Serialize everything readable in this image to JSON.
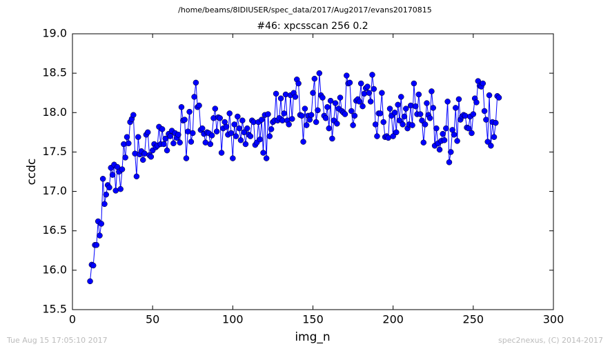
{
  "chart_data": {
    "type": "scatter",
    "header": "/home/beams/8IDIUSER/spec_data/2017/Aug2017/evans20170815",
    "title": "#46: xpcsscan 256 0.2",
    "x_label": "img_n",
    "y_label": "ccdc",
    "footer_left": "Tue Aug 15 17:05:10 2017",
    "footer_right": "spec2nexus, (C) 2014-2017",
    "xlim": [
      0,
      300
    ],
    "xticks": [
      0,
      50,
      100,
      150,
      200,
      250,
      300
    ],
    "ylim": [
      15.5,
      19.0
    ],
    "yticks": [
      {
        "value": 15.5,
        "label": "15.5"
      },
      {
        "value": 16,
        "label": "16.0"
      },
      {
        "value": 16.5,
        "label": "16.5"
      },
      {
        "value": 17,
        "label": "17.0"
      },
      {
        "value": 17.5,
        "label": "17.5"
      },
      {
        "value": 18,
        "label": "18.0"
      },
      {
        "value": 18.5,
        "label": "18.5"
      },
      {
        "value": 19,
        "label": "19.0"
      }
    ],
    "color": "#0000ff",
    "x": [
      11,
      12,
      13,
      14,
      15,
      16,
      17,
      18,
      19,
      20,
      21,
      22,
      23,
      24,
      25,
      26,
      27,
      28,
      29,
      30,
      31,
      32,
      33,
      34,
      35,
      36,
      37,
      38,
      39,
      40,
      41,
      42,
      43,
      44,
      45,
      46,
      47,
      48,
      49,
      50,
      51,
      52,
      53,
      54,
      55,
      56,
      57,
      58,
      59,
      60,
      61,
      62,
      63,
      64,
      65,
      66,
      67,
      68,
      69,
      70,
      71,
      72,
      73,
      74,
      75,
      76,
      77,
      78,
      79,
      80,
      81,
      82,
      83,
      84,
      85,
      86,
      87,
      88,
      89,
      90,
      91,
      92,
      93,
      94,
      95,
      96,
      97,
      98,
      99,
      100,
      101,
      102,
      103,
      104,
      105,
      106,
      107,
      108,
      109,
      110,
      111,
      112,
      113,
      114,
      115,
      116,
      117,
      118,
      119,
      120,
      121,
      122,
      123,
      124,
      125,
      126,
      127,
      128,
      129,
      130,
      131,
      132,
      133,
      134,
      135,
      136,
      137,
      138,
      139,
      140,
      141,
      142,
      143,
      144,
      145,
      146,
      147,
      148,
      149,
      150,
      151,
      152,
      153,
      154,
      155,
      156,
      157,
      158,
      159,
      160,
      161,
      162,
      163,
      164,
      165,
      166,
      167,
      168,
      169,
      170,
      171,
      172,
      173,
      174,
      175,
      176,
      177,
      178,
      179,
      180,
      181,
      182,
      183,
      184,
      185,
      186,
      187,
      188,
      189,
      190,
      191,
      192,
      193,
      194,
      195,
      196,
      197,
      198,
      199,
      200,
      201,
      202,
      203,
      204,
      205,
      206,
      207,
      208,
      209,
      210,
      211,
      212,
      213,
      214,
      215,
      216,
      217,
      218,
      219,
      220,
      221,
      222,
      223,
      224,
      225,
      226,
      227,
      228,
      229,
      230,
      231,
      232,
      233,
      234,
      235,
      236,
      237,
      238,
      239,
      240,
      241,
      242,
      243,
      244,
      245,
      246,
      247,
      248,
      249,
      250,
      251,
      252,
      253,
      254,
      255,
      256,
      257,
      258,
      259,
      260,
      261,
      262,
      263,
      264,
      265,
      266
    ],
    "values": [
      15.86,
      16.07,
      16.06,
      16.32,
      16.32,
      16.62,
      16.44,
      16.59,
      17.16,
      16.84,
      16.96,
      17.08,
      17.05,
      17.3,
      17.21,
      17.34,
      17.01,
      17.31,
      17.25,
      17.03,
      17.28,
      17.6,
      17.43,
      17.69,
      17.61,
      17.88,
      17.92,
      17.97,
      17.48,
      17.19,
      17.69,
      17.47,
      17.51,
      17.4,
      17.48,
      17.72,
      17.75,
      17.46,
      17.44,
      17.52,
      17.6,
      17.56,
      17.58,
      17.82,
      17.6,
      17.79,
      17.6,
      17.67,
      17.52,
      17.73,
      17.7,
      17.77,
      17.61,
      17.74,
      17.68,
      17.72,
      17.62,
      18.07,
      17.9,
      17.91,
      17.42,
      17.76,
      18.01,
      17.63,
      17.74,
      18.2,
      18.38,
      18.07,
      18.09,
      17.78,
      17.8,
      17.73,
      17.62,
      17.75,
      17.74,
      17.6,
      17.71,
      17.93,
      18.05,
      17.76,
      17.94,
      17.93,
      17.49,
      17.8,
      17.88,
      17.82,
      17.72,
      17.99,
      17.74,
      17.42,
      17.85,
      17.7,
      17.95,
      17.8,
      17.65,
      17.9,
      17.75,
      17.6,
      17.8,
      17.72,
      17.7,
      17.9,
      17.88,
      17.59,
      17.62,
      17.88,
      17.66,
      17.91,
      17.49,
      17.97,
      17.42,
      17.98,
      17.7,
      17.79,
      17.88,
      17.9,
      18.24,
      17.9,
      17.93,
      18.18,
      17.9,
      17.99,
      18.23,
      17.9,
      17.85,
      18.22,
      17.92,
      18.25,
      18.2,
      18.42,
      18.37,
      17.97,
      17.96,
      17.63,
      18.05,
      17.84,
      17.96,
      17.91,
      17.97,
      18.25,
      18.43,
      17.88,
      18.03,
      18.5,
      18.22,
      18.19,
      17.96,
      17.93,
      18.07,
      17.8,
      18.15,
      17.67,
      17.9,
      18.12,
      17.86,
      18.05,
      18.19,
      18.02,
      18.0,
      17.98,
      18.47,
      18.37,
      18.38,
      18.02,
      17.84,
      17.96,
      18.15,
      18.17,
      18.14,
      18.37,
      18.08,
      18.24,
      18.31,
      18.33,
      18.25,
      18.14,
      18.48,
      18.3,
      17.85,
      17.7,
      17.99,
      17.99,
      18.25,
      17.88,
      17.69,
      17.7,
      17.68,
      18.05,
      17.96,
      17.7,
      18.0,
      17.75,
      18.1,
      17.9,
      18.2,
      17.85,
      17.95,
      18.05,
      17.8,
      17.85,
      18.09,
      17.84,
      18.37,
      18.08,
      17.98,
      18.23,
      17.98,
      17.9,
      17.62,
      17.85,
      18.12,
      17.97,
      17.93,
      18.27,
      18.06,
      17.58,
      17.8,
      17.61,
      17.53,
      17.64,
      17.73,
      17.65,
      17.8,
      18.14,
      17.37,
      17.5,
      17.78,
      17.72,
      18.06,
      17.64,
      18.17,
      17.91,
      17.95,
      17.97,
      17.96,
      17.81,
      17.8,
      17.95,
      17.74,
      17.98,
      18.18,
      18.13,
      18.4,
      18.34,
      18.33,
      18.37,
      18.02,
      17.91,
      17.63,
      18.22,
      17.58,
      17.88,
      17.69,
      17.87,
      18.21,
      18.19
    ]
  }
}
